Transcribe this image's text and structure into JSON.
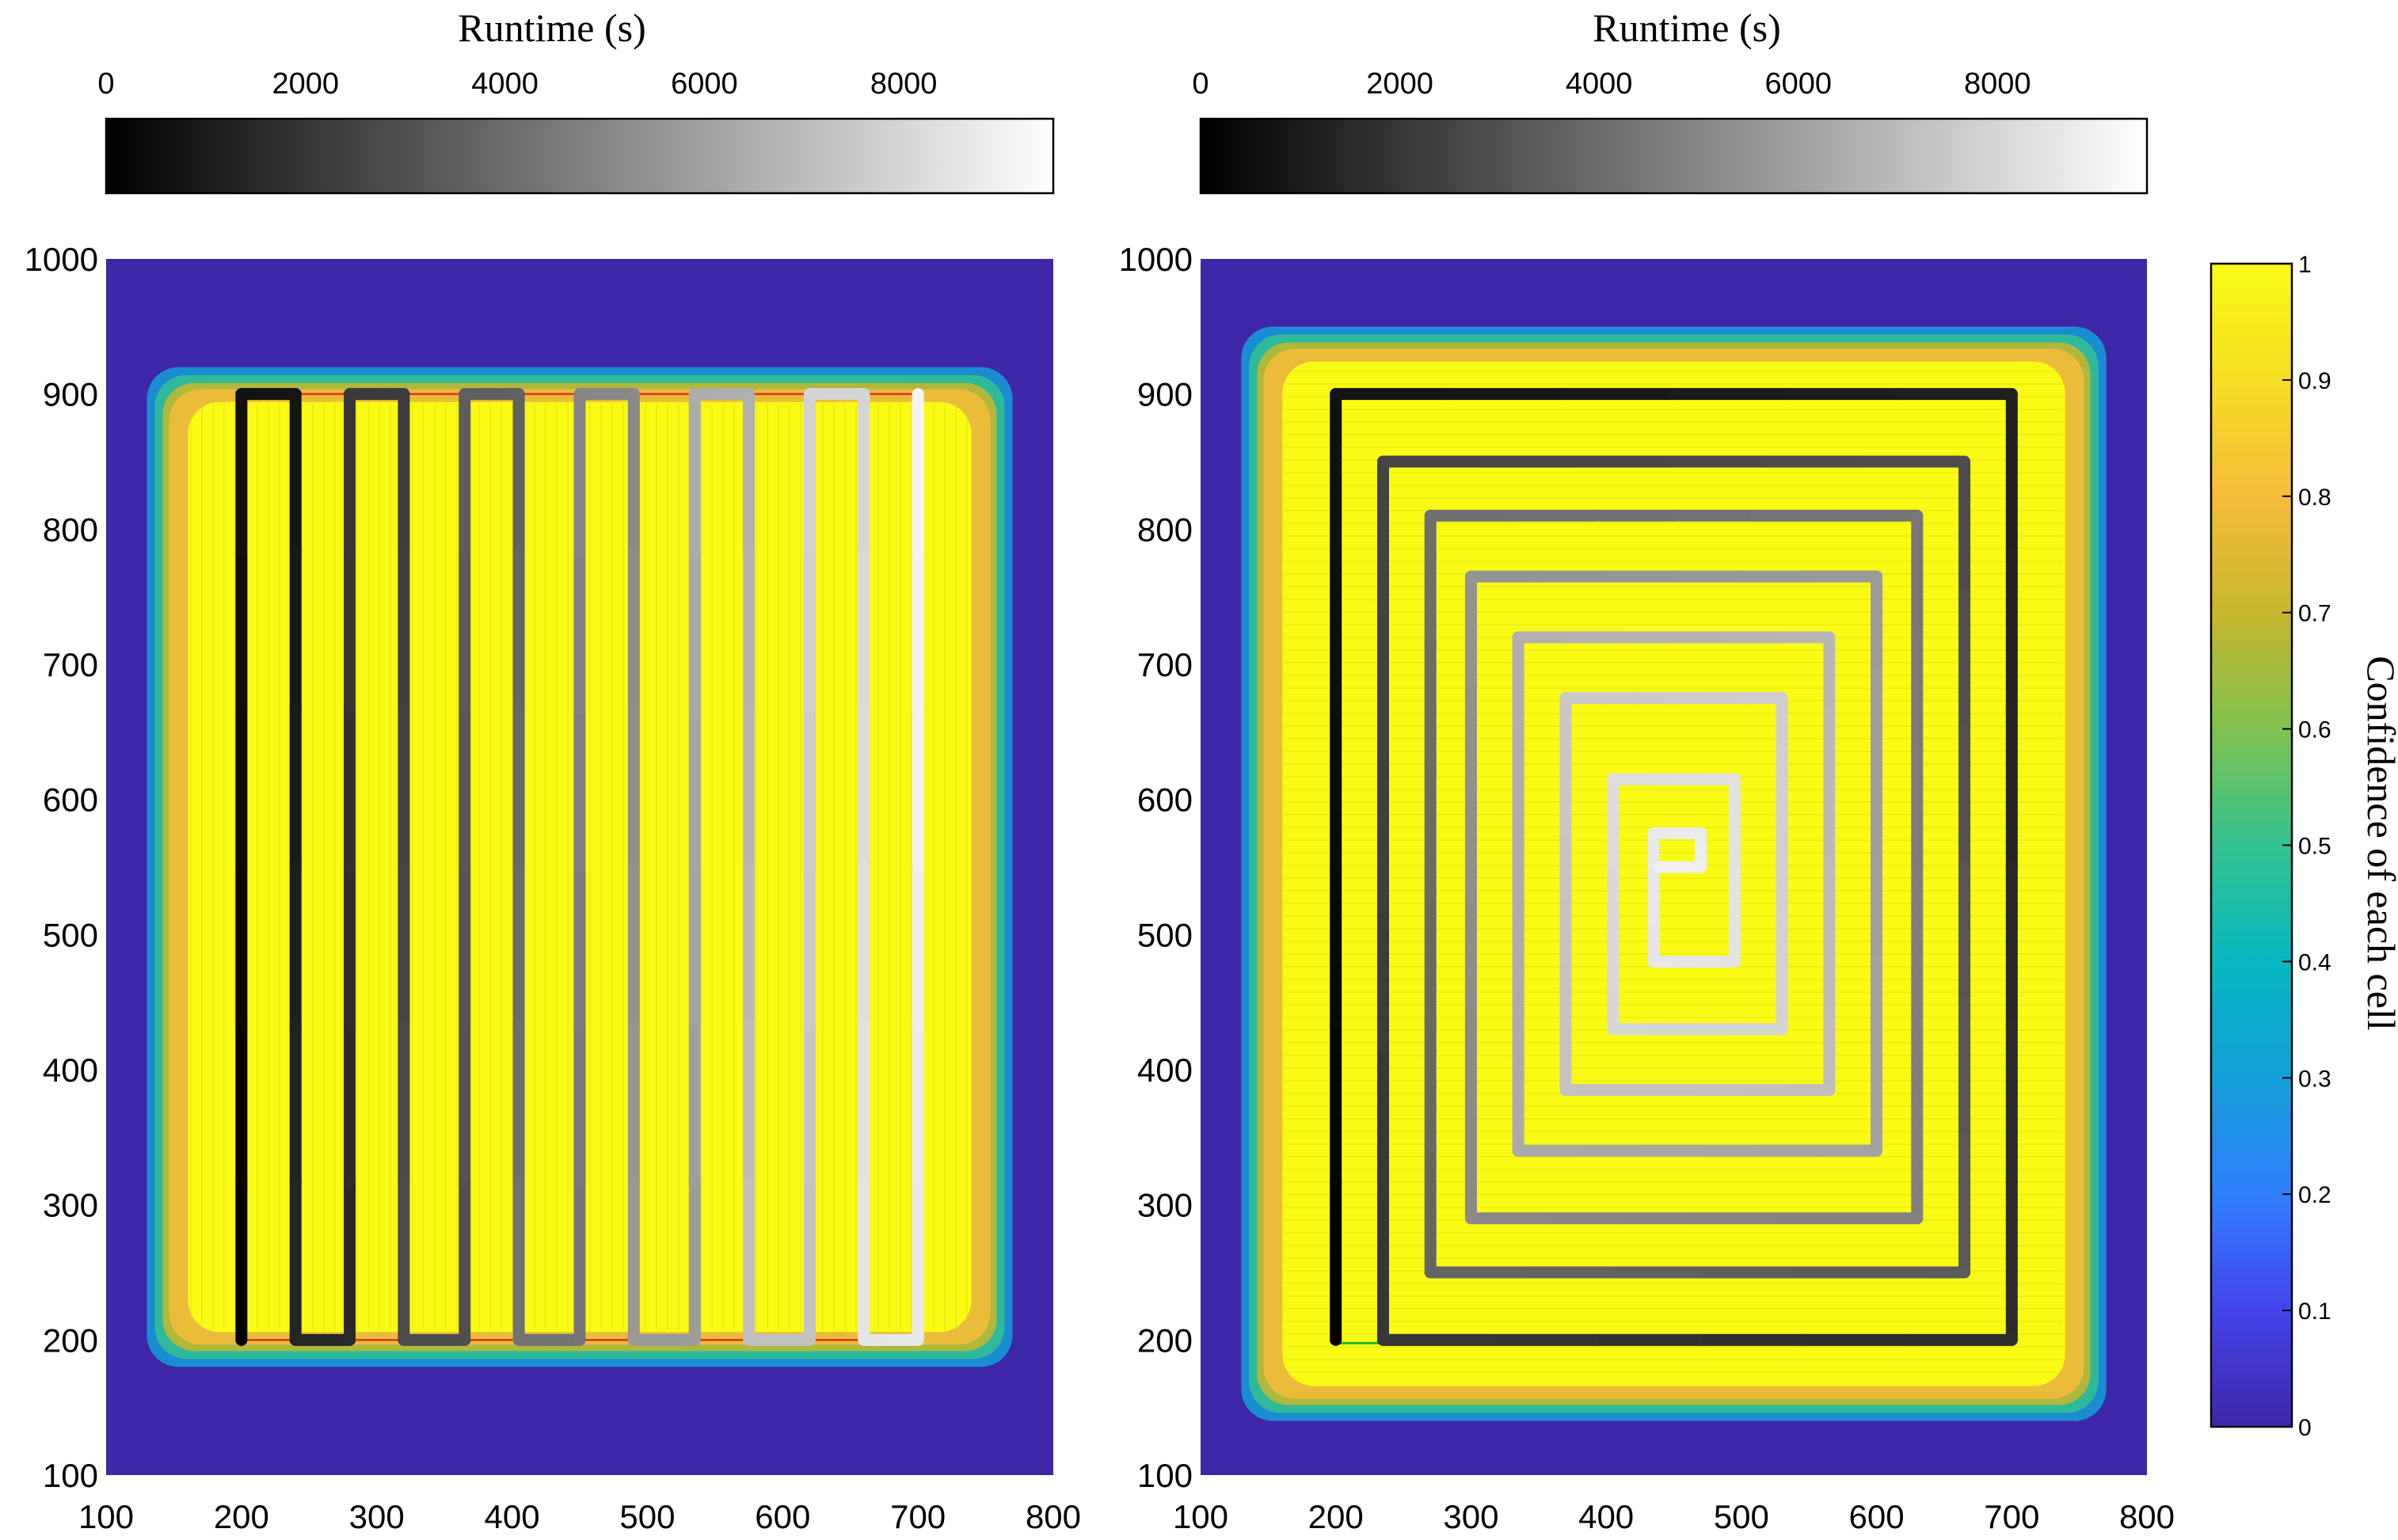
{
  "chart_data": [
    {
      "type": "heatmap",
      "panel": "left",
      "path_pattern": "boustrophedon",
      "runtime_colorbar": {
        "label": "Runtime (s)",
        "ticks": [
          "0",
          "2000",
          "4000",
          "6000",
          "8000"
        ],
        "tick_values": [
          0,
          2000,
          4000,
          6000,
          8000
        ],
        "range": [
          0,
          9500
        ],
        "colors": [
          "#000000",
          "#ffffff"
        ]
      },
      "xlim": [
        100,
        800
      ],
      "ylim": [
        100,
        1000
      ],
      "xticks": [
        "100",
        "200",
        "300",
        "400",
        "500",
        "600",
        "700",
        "800"
      ],
      "yticks": [
        "100",
        "200",
        "300",
        "400",
        "500",
        "600",
        "700",
        "800",
        "900",
        "1000"
      ],
      "covered_region": {
        "x": [
          150,
          750
        ],
        "y": [
          200,
          900
        ]
      },
      "path": {
        "x": [
          200,
          200,
          240,
          240,
          280,
          280,
          320,
          320,
          365,
          365,
          405,
          405,
          450,
          450,
          490,
          490,
          535,
          535,
          575,
          575,
          620,
          620,
          660,
          660,
          700,
          700
        ],
        "y": [
          200,
          900,
          900,
          200,
          200,
          900,
          900,
          200,
          200,
          900,
          900,
          200,
          200,
          900,
          900,
          200,
          200,
          900,
          900,
          200,
          200,
          900,
          900,
          200,
          200,
          900
        ],
        "runtime": [
          0,
          700,
          750,
          1450,
          1500,
          2200,
          2250,
          2950,
          3000,
          3700,
          3750,
          4450,
          4500,
          5200,
          5250,
          5950,
          6000,
          6700,
          6750,
          7450,
          7500,
          8200,
          8250,
          8950,
          9000,
          9500
        ]
      }
    },
    {
      "type": "heatmap",
      "panel": "right",
      "path_pattern": "spiral",
      "runtime_colorbar": {
        "label": "Runtime (s)",
        "ticks": [
          "0",
          "2000",
          "4000",
          "6000",
          "8000"
        ],
        "tick_values": [
          0,
          2000,
          4000,
          6000,
          8000
        ],
        "range": [
          0,
          9500
        ],
        "colors": [
          "#000000",
          "#ffffff"
        ]
      },
      "xlim": [
        100,
        800
      ],
      "ylim": [
        100,
        1000
      ],
      "xticks": [
        "100",
        "200",
        "300",
        "400",
        "500",
        "600",
        "700",
        "800"
      ],
      "yticks": [
        "100",
        "200",
        "300",
        "400",
        "500",
        "600",
        "700",
        "800",
        "900",
        "1000"
      ],
      "covered_region": {
        "x": [
          150,
          750
        ],
        "y": [
          160,
          930
        ]
      },
      "path": {
        "x": [
          200,
          200,
          700,
          700,
          235,
          235,
          665,
          665,
          270,
          270,
          630,
          630,
          300,
          300,
          600,
          600,
          335,
          335,
          565,
          565,
          370,
          370,
          530,
          530,
          405,
          405,
          495,
          495,
          435,
          435,
          470,
          470,
          440
        ],
        "y": [
          200,
          900,
          900,
          200,
          200,
          850,
          850,
          250,
          250,
          810,
          810,
          290,
          290,
          765,
          765,
          340,
          340,
          720,
          720,
          385,
          385,
          675,
          675,
          430,
          430,
          615,
          615,
          480,
          480,
          575,
          575,
          550,
          550
        ],
        "runtime": [
          0,
          700,
          1200,
          1700,
          2100,
          2600,
          3000,
          3500,
          3900,
          4300,
          4600,
          5000,
          5300,
          5700,
          6000,
          6300,
          6550,
          6850,
          7100,
          7350,
          7550,
          7800,
          8000,
          8200,
          8350,
          8550,
          8700,
          8850,
          8950,
          9050,
          9150,
          9250,
          9350
        ]
      }
    }
  ],
  "confidence_colorbar": {
    "label": "Confidence of each cell",
    "ticks": [
      "0",
      "0.1",
      "0.2",
      "0.3",
      "0.4",
      "0.5",
      "0.6",
      "0.7",
      "0.8",
      "0.9",
      "1"
    ],
    "tick_values": [
      0,
      0.1,
      0.2,
      0.3,
      0.4,
      0.5,
      0.6,
      0.7,
      0.8,
      0.9,
      1
    ],
    "range": [
      0,
      1
    ],
    "colormap": "parula",
    "colors": [
      "#3e26a8",
      "#4443ea",
      "#2f7ffc",
      "#149fd8",
      "#07b8c0",
      "#33c290",
      "#81c251",
      "#c6b72d",
      "#f6bc3a",
      "#f6de23",
      "#f9fb15"
    ]
  },
  "colors": {
    "background_low_confidence": "#3e26a8",
    "covered_high_confidence": "#f9fb15",
    "boundary_line_left": "#e03020",
    "boundary_line_right": "#1fb81f"
  }
}
